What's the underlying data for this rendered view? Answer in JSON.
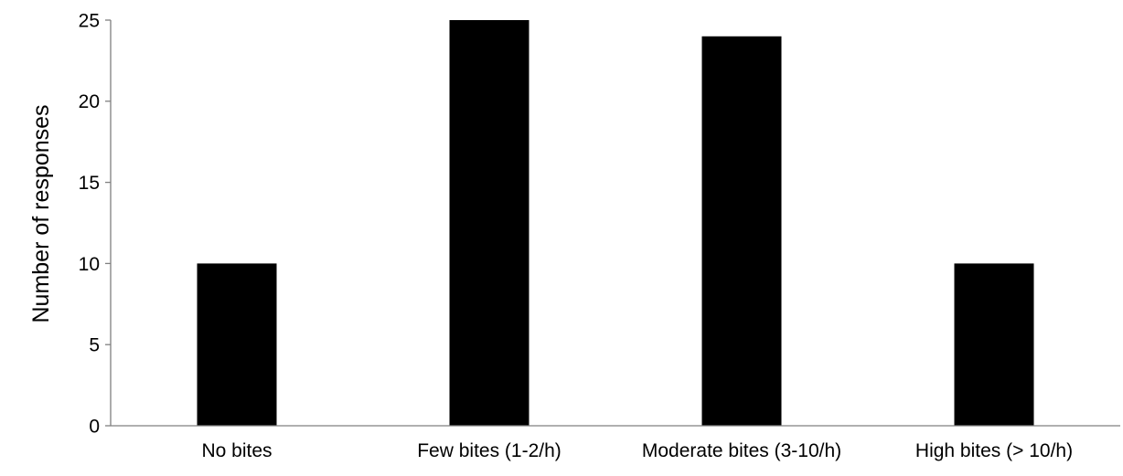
{
  "chart_data": {
    "type": "bar",
    "title": "",
    "xlabel": "",
    "ylabel": "Number of responses",
    "categories": [
      "No bites",
      "Few bites (1-2/h)",
      "Moderate bites (3-10/h)",
      "High bites (> 10/h)"
    ],
    "values": [
      10,
      25,
      24,
      10
    ],
    "ylim": [
      0,
      25
    ],
    "yticks": [
      0,
      5,
      10,
      15,
      20,
      25
    ],
    "bar_color": "#000000",
    "grid": false,
    "legend": "none"
  }
}
